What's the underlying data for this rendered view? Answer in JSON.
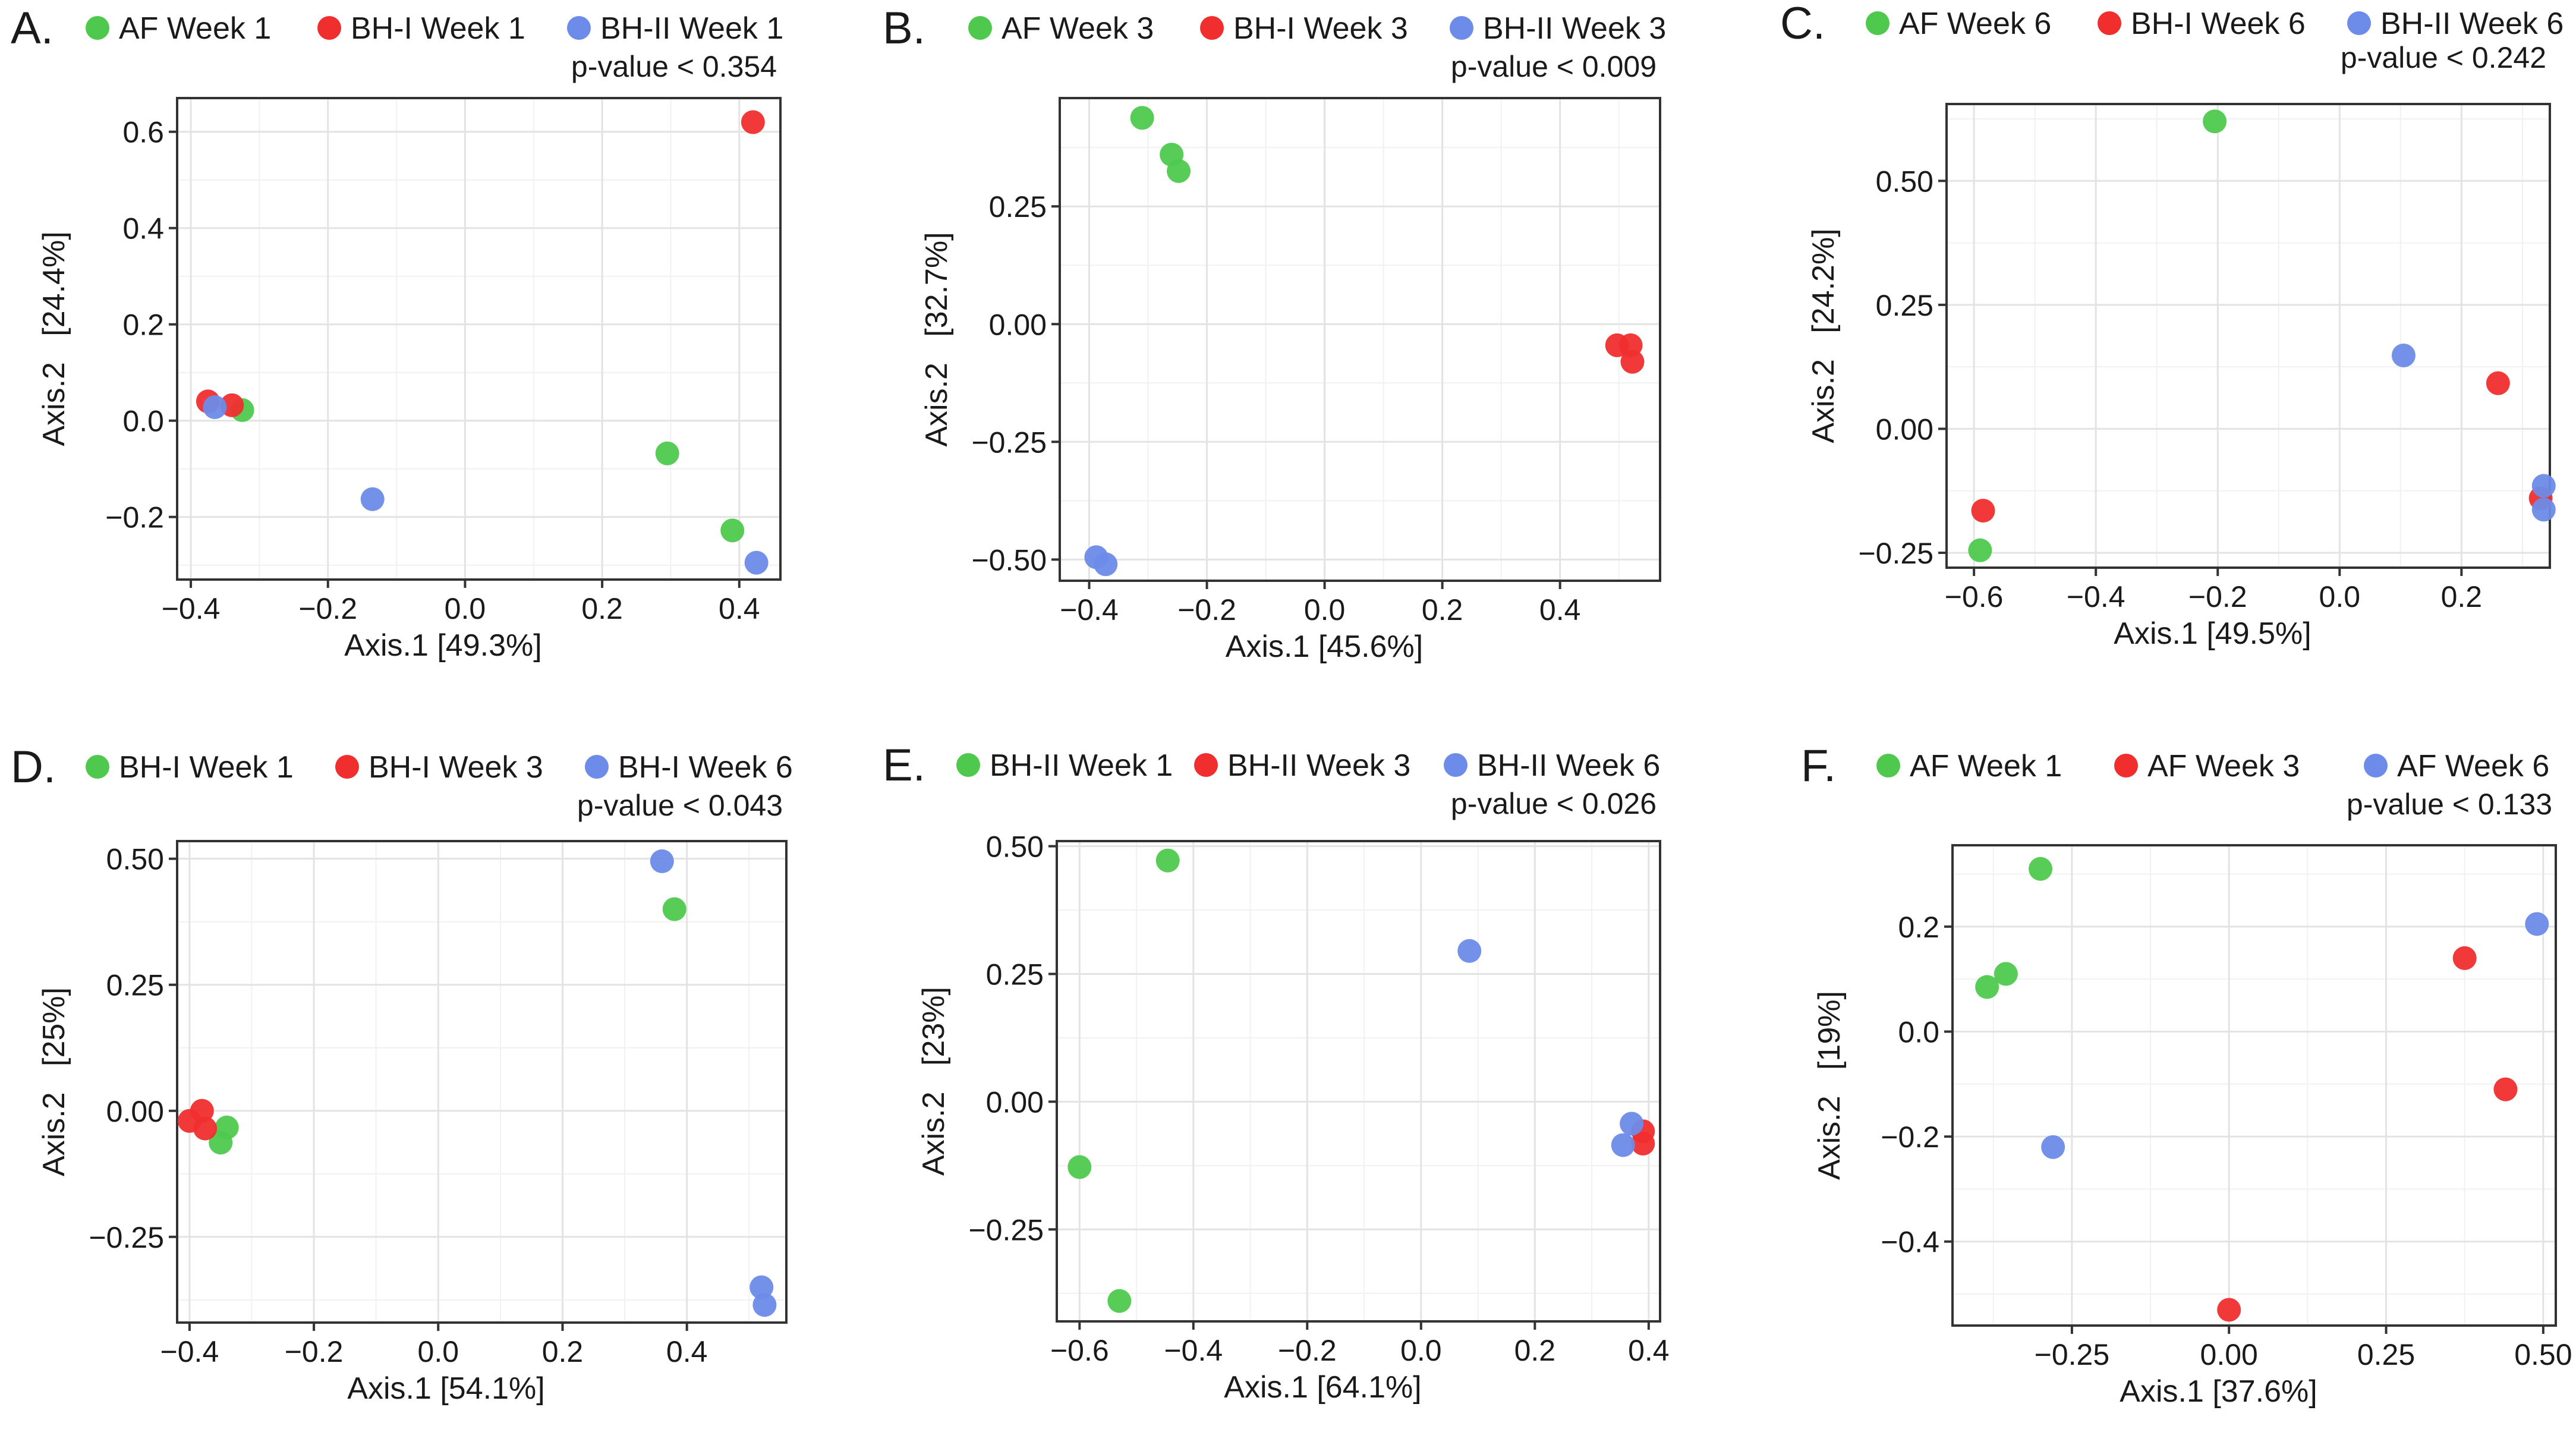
{
  "colors": {
    "group1": "#4ec94e",
    "group2": "#f02e2e",
    "group3": "#6d8be8"
  },
  "chart_data": [
    {
      "type": "scatter",
      "panel_label": "A.",
      "legend": [
        "AF Week 1",
        "BH-I Week 1",
        "BH-II Week 1"
      ],
      "annotation": "p-value < 0.354",
      "xlabel": "Axis.1 [49.3%]",
      "ylabel": "Axis.2   [24.4%]",
      "xlim": [
        -0.42,
        0.46
      ],
      "ylim": [
        -0.33,
        0.67
      ],
      "xticks": [
        -0.4,
        -0.2,
        0.0,
        0.2,
        0.4
      ],
      "xtick_labels": [
        "−0.4",
        "−0.2",
        "0.0",
        "0.2",
        "0.4"
      ],
      "yticks": [
        -0.2,
        0.0,
        0.2,
        0.4,
        0.6
      ],
      "ytick_labels": [
        "−0.2",
        "0.0",
        "0.2",
        "0.4",
        "0.6"
      ],
      "series": [
        {
          "name": "AF Week 1",
          "points": [
            [
              -0.325,
              0.022
            ],
            [
              0.295,
              -0.068
            ],
            [
              0.39,
              -0.228
            ]
          ]
        },
        {
          "name": "BH-I Week 1",
          "points": [
            [
              -0.375,
              0.04
            ],
            [
              -0.34,
              0.032
            ],
            [
              0.42,
              0.62
            ]
          ]
        },
        {
          "name": "BH-II Week 1",
          "points": [
            [
              -0.365,
              0.028
            ],
            [
              -0.135,
              -0.163
            ],
            [
              0.425,
              -0.295
            ]
          ]
        }
      ]
    },
    {
      "type": "scatter",
      "panel_label": "B.",
      "legend": [
        "AF Week 3",
        "BH-I Week 3",
        "BH-II Week 3"
      ],
      "annotation": "p-value < 0.009",
      "xlabel": "Axis.1 [45.6%]",
      "ylabel": "Axis.2   [32.7%]",
      "xlim": [
        -0.45,
        0.57
      ],
      "ylim": [
        -0.545,
        0.48
      ],
      "xticks": [
        -0.4,
        -0.2,
        0.0,
        0.2,
        0.4
      ],
      "xtick_labels": [
        "−0.4",
        "−0.2",
        "0.0",
        "0.2",
        "0.4"
      ],
      "yticks": [
        -0.5,
        -0.25,
        0.0,
        0.25
      ],
      "ytick_labels": [
        "−0.50",
        "−0.25",
        "0.00",
        "0.25"
      ],
      "series": [
        {
          "name": "AF Week 3",
          "points": [
            [
              -0.31,
              0.438
            ],
            [
              -0.26,
              0.36
            ],
            [
              -0.248,
              0.325
            ]
          ]
        },
        {
          "name": "BH-I Week 3",
          "points": [
            [
              0.497,
              -0.045
            ],
            [
              0.52,
              -0.045
            ],
            [
              0.523,
              -0.08
            ]
          ]
        },
        {
          "name": "BH-II Week 3",
          "points": [
            [
              -0.388,
              -0.495
            ],
            [
              -0.372,
              -0.51
            ]
          ]
        }
      ]
    },
    {
      "type": "scatter",
      "panel_label": "C.",
      "legend": [
        "AF Week 6",
        "BH-I Week 6",
        "BH-II Week 6"
      ],
      "annotation": "p-value < 0.242",
      "xlabel": "Axis.1 [49.5%]",
      "ylabel": "Axis.2   [24.2%]",
      "xlim": [
        -0.645,
        0.345
      ],
      "ylim": [
        -0.28,
        0.655
      ],
      "xticks": [
        -0.6,
        -0.4,
        -0.2,
        0.0,
        0.2
      ],
      "xtick_labels": [
        "−0.6",
        "−0.4",
        "−0.2",
        "0.0",
        "0.2"
      ],
      "yticks": [
        -0.25,
        0.0,
        0.25,
        0.5
      ],
      "ytick_labels": [
        "−0.25",
        "0.00",
        "0.25",
        "0.50"
      ],
      "series": [
        {
          "name": "AF Week 6",
          "points": [
            [
              -0.205,
              0.62
            ],
            [
              -0.59,
              -0.245
            ]
          ]
        },
        {
          "name": "BH-I Week 6",
          "points": [
            [
              -0.585,
              -0.165
            ],
            [
              0.26,
              0.092
            ],
            [
              0.33,
              -0.14
            ]
          ]
        },
        {
          "name": "BH-II Week 6",
          "points": [
            [
              0.105,
              0.148
            ],
            [
              0.335,
              -0.115
            ],
            [
              0.335,
              -0.163
            ]
          ]
        }
      ]
    },
    {
      "type": "scatter",
      "panel_label": "D.",
      "legend": [
        "BH-I Week 1",
        "BH-I Week 3",
        "BH-I Week 6"
      ],
      "annotation": "p-value < 0.043",
      "xlabel": "Axis.1 [54.1%]",
      "ylabel": "Axis.2   [25%]",
      "xlim": [
        -0.42,
        0.56
      ],
      "ylim": [
        -0.42,
        0.535
      ],
      "xticks": [
        -0.4,
        -0.2,
        0.0,
        0.2,
        0.4
      ],
      "xtick_labels": [
        "−0.4",
        "−0.2",
        "0.0",
        "0.2",
        "0.4"
      ],
      "yticks": [
        -0.25,
        0.0,
        0.25,
        0.5
      ],
      "ytick_labels": [
        "−0.25",
        "0.00",
        "0.25",
        "0.50"
      ],
      "series": [
        {
          "name": "BH-I Week 1",
          "points": [
            [
              0.38,
              0.4
            ],
            [
              -0.34,
              -0.033
            ],
            [
              -0.35,
              -0.063
            ]
          ]
        },
        {
          "name": "BH-I Week 3",
          "points": [
            [
              -0.4,
              -0.02
            ],
            [
              -0.38,
              0.0
            ],
            [
              -0.375,
              -0.035
            ]
          ]
        },
        {
          "name": "BH-I Week 6",
          "points": [
            [
              0.36,
              0.495
            ],
            [
              0.52,
              -0.35
            ],
            [
              0.525,
              -0.385
            ]
          ]
        }
      ]
    },
    {
      "type": "scatter",
      "panel_label": "E.",
      "legend": [
        "BH-II Week 1",
        "BH-II Week 3",
        "BH-II Week 6"
      ],
      "annotation": "p-value < 0.026",
      "xlabel": "Axis.1 [64.1%]",
      "ylabel": "Axis.2   [23%]",
      "xlim": [
        -0.64,
        0.42
      ],
      "ylim": [
        -0.43,
        0.51
      ],
      "xticks": [
        -0.6,
        -0.4,
        -0.2,
        0.0,
        0.2,
        0.4
      ],
      "xtick_labels": [
        "−0.6",
        "−0.4",
        "−0.2",
        "0.0",
        "0.2",
        "0.4"
      ],
      "yticks": [
        -0.25,
        0.0,
        0.25,
        0.5
      ],
      "ytick_labels": [
        "−0.25",
        "0.00",
        "0.25",
        "0.50"
      ],
      "series": [
        {
          "name": "BH-II Week 1",
          "points": [
            [
              -0.445,
              0.472
            ],
            [
              -0.6,
              -0.128
            ],
            [
              -0.53,
              -0.39
            ]
          ]
        },
        {
          "name": "BH-II Week 3",
          "points": [
            [
              0.39,
              -0.058
            ],
            [
              0.39,
              -0.082
            ]
          ]
        },
        {
          "name": "BH-II Week 6",
          "points": [
            [
              0.085,
              0.295
            ],
            [
              0.37,
              -0.043
            ],
            [
              0.355,
              -0.085
            ]
          ]
        }
      ]
    },
    {
      "type": "scatter",
      "panel_label": "F.",
      "legend": [
        "AF Week 1",
        "AF Week 3",
        "AF Week 6"
      ],
      "annotation": "p-value < 0.133",
      "xlabel": "Axis.1 [37.6%]",
      "ylabel": "Axis.2   [19%]",
      "xlim": [
        -0.44,
        0.52
      ],
      "ylim": [
        -0.56,
        0.355
      ],
      "xticks": [
        -0.25,
        0.0,
        0.25,
        0.5
      ],
      "xtick_labels": [
        "−0.25",
        "0.00",
        "0.25",
        "0.50"
      ],
      "yticks": [
        -0.4,
        -0.2,
        0.0,
        0.2
      ],
      "ytick_labels": [
        "−0.4",
        "−0.2",
        "0.0",
        "0.2"
      ],
      "series": [
        {
          "name": "AF Week 1",
          "points": [
            [
              -0.3,
              0.31
            ],
            [
              -0.355,
              0.11
            ],
            [
              -0.385,
              0.085
            ]
          ]
        },
        {
          "name": "AF Week 3",
          "points": [
            [
              0.375,
              0.14
            ],
            [
              0.44,
              -0.11
            ],
            [
              0.0,
              -0.53
            ]
          ]
        },
        {
          "name": "AF Week 6",
          "points": [
            [
              0.49,
              0.205
            ],
            [
              -0.28,
              -0.22
            ]
          ]
        }
      ]
    }
  ]
}
